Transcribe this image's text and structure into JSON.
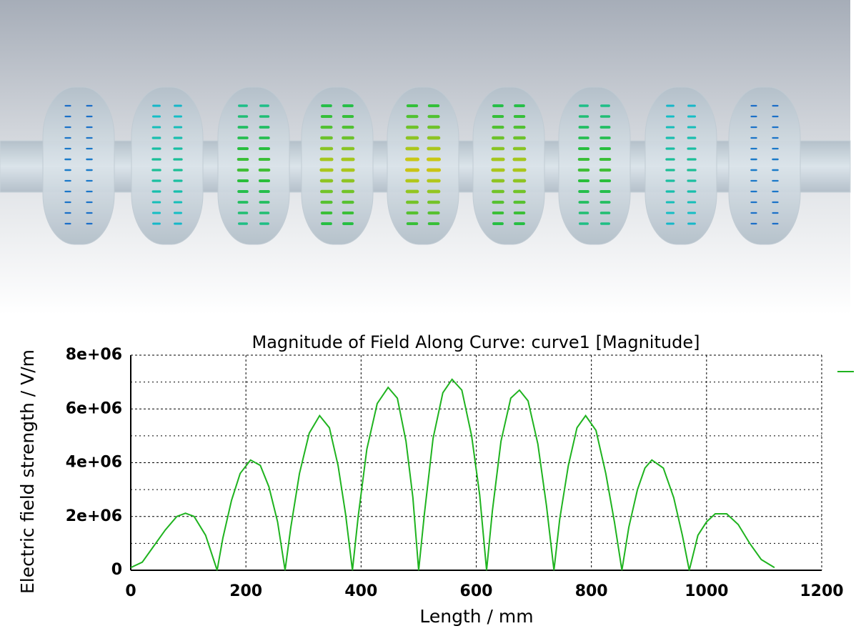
{
  "chart_data": {
    "type": "line",
    "title": "Magnitude of Field Along Curve: curve1 [Magnitude]",
    "x_label": "Length / mm",
    "y_label": "Electric field strength / V/m",
    "xlim": [
      0,
      1200
    ],
    "ylim": [
      0,
      8000000
    ],
    "xticks": [
      0,
      200,
      400,
      600,
      800,
      1000,
      1200
    ],
    "yticks": [
      0,
      {
        "value": 2000000,
        "label": "2e+06"
      },
      {
        "value": 4000000,
        "label": "4e+06"
      },
      {
        "value": 6000000,
        "label": "6e+06"
      },
      {
        "value": 8000000,
        "label": "8e+06"
      }
    ],
    "y_minor_gridlines": [
      1000000,
      3000000,
      5000000,
      7000000
    ],
    "grid": true,
    "series": [
      {
        "color": "#1fb31f",
        "x": [
          0,
          20,
          40,
          60,
          80,
          95,
          110,
          130,
          150,
          160,
          175,
          190,
          208,
          225,
          240,
          255,
          268,
          278,
          293,
          310,
          328,
          345,
          360,
          373,
          385,
          395,
          410,
          428,
          447,
          463,
          478,
          490,
          500,
          510,
          525,
          542,
          558,
          575,
          592,
          606,
          618,
          628,
          643,
          660,
          675,
          690,
          707,
          722,
          735,
          745,
          760,
          775,
          790,
          808,
          825,
          840,
          853,
          865,
          880,
          893,
          905,
          925,
          943,
          958,
          970,
          985,
          1000,
          1015,
          1035,
          1055,
          1075,
          1095,
          1118
        ],
        "values": [
          100000,
          300000,
          900000,
          1500000,
          2000000,
          2120000,
          2000000,
          1300000,
          0,
          1200000,
          2600000,
          3600000,
          4100000,
          3900000,
          3100000,
          1800000,
          0,
          1600000,
          3600000,
          5100000,
          5750000,
          5300000,
          3900000,
          2100000,
          0,
          2000000,
          4500000,
          6200000,
          6800000,
          6400000,
          4800000,
          2700000,
          0,
          2100000,
          4900000,
          6600000,
          7100000,
          6700000,
          5000000,
          2800000,
          0,
          2200000,
          4800000,
          6400000,
          6700000,
          6300000,
          4700000,
          2400000,
          0,
          1900000,
          3900000,
          5300000,
          5750000,
          5200000,
          3600000,
          1800000,
          0,
          1600000,
          3000000,
          3800000,
          4100000,
          3800000,
          2700000,
          1300000,
          0,
          1300000,
          1800000,
          2100000,
          2100000,
          1700000,
          1000000,
          400000,
          100000
        ]
      }
    ]
  }
}
